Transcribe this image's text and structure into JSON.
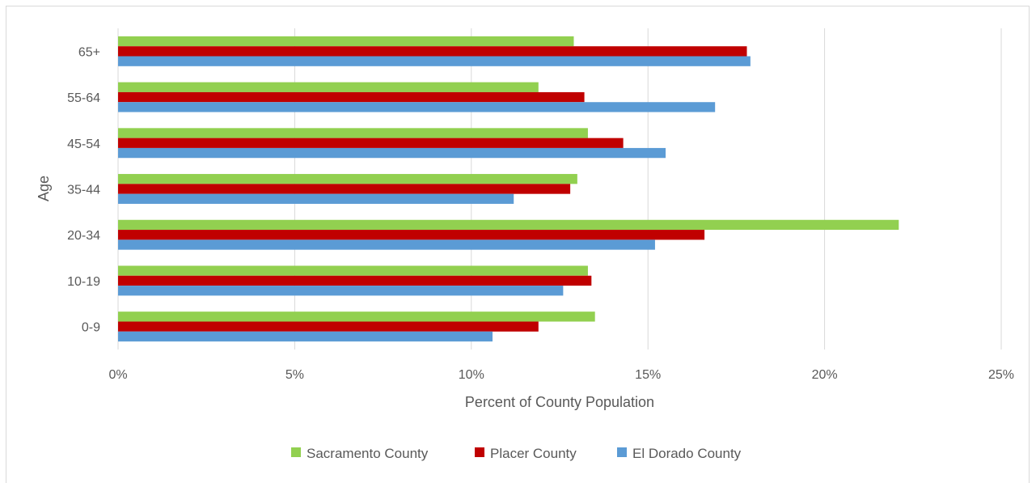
{
  "chart_data": {
    "type": "bar",
    "orientation": "horizontal",
    "categories": [
      "0-9",
      "10-19",
      "20-34",
      "35-44",
      "45-54",
      "55-64",
      "65+"
    ],
    "series": [
      {
        "name": "Sacramento County",
        "color": "#92d050",
        "values": [
          13.5,
          13.3,
          22.1,
          13.0,
          13.3,
          11.9,
          12.9
        ]
      },
      {
        "name": "Placer County",
        "color": "#c00000",
        "values": [
          11.9,
          13.4,
          16.6,
          12.8,
          14.3,
          13.2,
          17.8
        ]
      },
      {
        "name": "El Dorado County",
        "color": "#5b9bd5",
        "values": [
          10.6,
          12.6,
          15.2,
          11.2,
          15.5,
          16.9,
          17.9
        ]
      }
    ],
    "xlim": [
      0,
      25
    ],
    "xticks": [
      0,
      5,
      10,
      15,
      20,
      25
    ],
    "xtick_labels": [
      "0%",
      "5%",
      "10%",
      "15%",
      "20%",
      "25%"
    ],
    "xlabel": "Percent of County Population",
    "ylabel": "Age",
    "grid": "vertical",
    "legend": "bottom"
  }
}
